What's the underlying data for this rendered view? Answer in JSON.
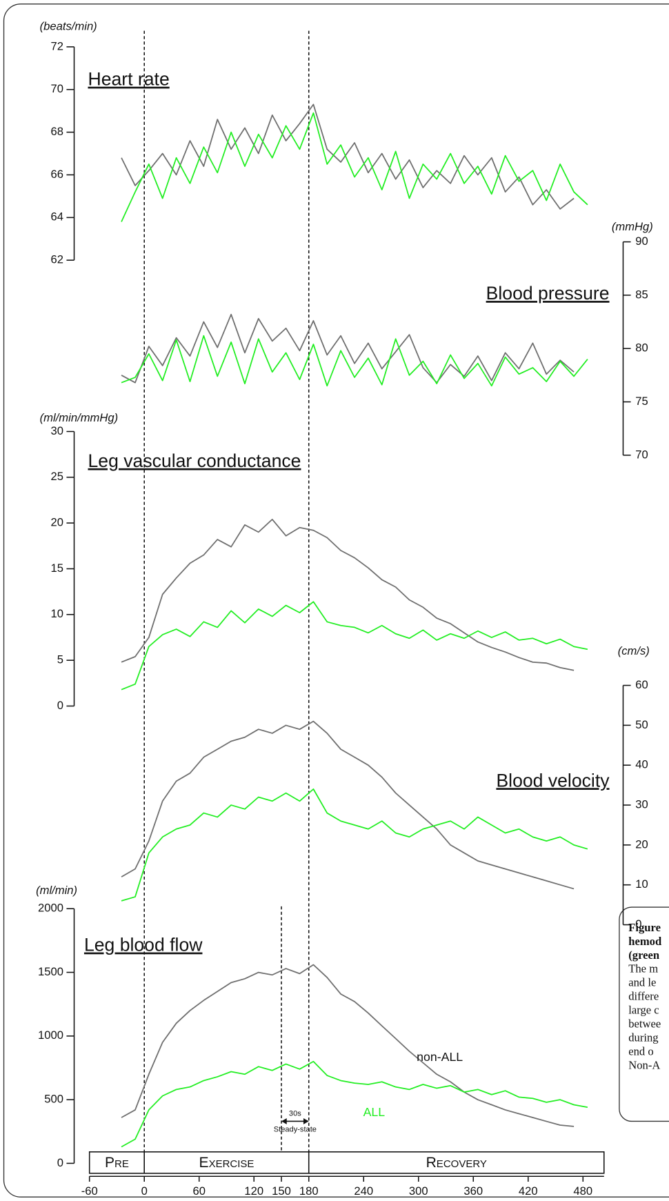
{
  "chart_data": [
    {
      "type": "line",
      "title": "Heart rate",
      "y_label": "(beats/min)",
      "y_axis": "left",
      "ylim": [
        62,
        72
      ],
      "yticks": [
        62,
        64,
        66,
        68,
        70,
        72
      ],
      "x": [
        -25,
        -10,
        5,
        20,
        35,
        50,
        65,
        80,
        95,
        110,
        125,
        140,
        155,
        170,
        185,
        200,
        215,
        230,
        245,
        260,
        275,
        290,
        305,
        320,
        335,
        350,
        365,
        380,
        395,
        410,
        425,
        440,
        455,
        470,
        485
      ],
      "series": [
        {
          "color": "#6e6e6e",
          "values": [
            66.8,
            65.5,
            66.2,
            67.0,
            66.0,
            67.6,
            66.4,
            68.6,
            67.2,
            68.2,
            67.0,
            68.8,
            67.6,
            68.4,
            69.3,
            67.2,
            66.6,
            67.5,
            66.1,
            67.0,
            65.8,
            66.7,
            65.4,
            66.2,
            65.6,
            66.9,
            66.0,
            66.8,
            65.2,
            65.9,
            64.6,
            65.3,
            64.4,
            64.9,
            null
          ]
        },
        {
          "color": "#22ee22",
          "values": [
            63.8,
            65.2,
            66.5,
            64.9,
            66.8,
            65.6,
            67.3,
            66.1,
            68.0,
            66.4,
            67.9,
            66.8,
            68.3,
            67.2,
            68.9,
            66.5,
            67.4,
            65.9,
            66.8,
            65.3,
            67.1,
            64.9,
            66.5,
            65.8,
            67.0,
            65.6,
            66.4,
            65.1,
            66.9,
            65.7,
            66.2,
            64.8,
            66.5,
            65.2,
            64.6
          ]
        }
      ]
    },
    {
      "type": "line",
      "title": "Blood pressure",
      "y_label": "(mmHg)",
      "y_axis": "right",
      "ylim": [
        70,
        90
      ],
      "yticks": [
        70,
        75,
        80,
        85,
        90
      ],
      "x": [
        -25,
        -10,
        5,
        20,
        35,
        50,
        65,
        80,
        95,
        110,
        125,
        140,
        155,
        170,
        185,
        200,
        215,
        230,
        245,
        260,
        275,
        290,
        305,
        320,
        335,
        350,
        365,
        380,
        395,
        410,
        425,
        440,
        455,
        470,
        485
      ],
      "series": [
        {
          "color": "#6e6e6e",
          "values": [
            77.5,
            76.8,
            80.2,
            78.4,
            81.0,
            79.3,
            82.5,
            80.1,
            83.2,
            79.6,
            82.8,
            80.7,
            81.9,
            79.8,
            82.6,
            79.4,
            81.2,
            78.6,
            80.5,
            78.1,
            79.7,
            81.3,
            78.2,
            76.8,
            78.5,
            77.4,
            79.3,
            77.0,
            79.6,
            78.1,
            80.5,
            77.6,
            78.9,
            77.8,
            null
          ]
        },
        {
          "color": "#22ee22",
          "values": [
            76.8,
            77.3,
            79.5,
            77.0,
            80.8,
            76.9,
            81.2,
            77.4,
            80.6,
            76.7,
            80.9,
            77.8,
            79.6,
            77.1,
            80.4,
            76.5,
            79.8,
            77.3,
            79.1,
            76.6,
            80.9,
            77.5,
            78.8,
            76.7,
            79.4,
            77.2,
            78.6,
            76.5,
            79.2,
            77.6,
            78.2,
            76.9,
            78.8,
            77.4,
            79.0
          ]
        }
      ]
    },
    {
      "type": "line",
      "title": "Leg vascular conductance",
      "y_label": "(ml/min/mmHg)",
      "y_axis": "left",
      "ylim": [
        0,
        30
      ],
      "yticks": [
        0,
        5,
        10,
        15,
        20,
        25,
        30
      ],
      "x": [
        -25,
        -10,
        5,
        20,
        35,
        50,
        65,
        80,
        95,
        110,
        125,
        140,
        155,
        170,
        185,
        200,
        215,
        230,
        245,
        260,
        275,
        290,
        305,
        320,
        335,
        350,
        365,
        380,
        395,
        410,
        425,
        440,
        455,
        470,
        485
      ],
      "series": [
        {
          "color": "#6e6e6e",
          "values": [
            4.8,
            5.4,
            7.5,
            12.2,
            14.0,
            15.6,
            16.5,
            18.2,
            17.4,
            19.8,
            19.0,
            20.4,
            18.6,
            19.5,
            19.2,
            18.4,
            17.0,
            16.2,
            15.1,
            13.8,
            13.0,
            11.6,
            10.8,
            9.6,
            9.0,
            8.0,
            7.0,
            6.4,
            5.9,
            5.3,
            4.8,
            4.7,
            4.2,
            3.9,
            null
          ]
        },
        {
          "color": "#22ee22",
          "values": [
            1.8,
            2.4,
            6.5,
            7.8,
            8.4,
            7.6,
            9.2,
            8.6,
            10.4,
            9.1,
            10.6,
            9.8,
            11.0,
            10.2,
            11.4,
            9.2,
            8.8,
            8.6,
            8.0,
            8.8,
            7.9,
            7.4,
            8.3,
            7.2,
            7.9,
            7.4,
            8.2,
            7.5,
            8.1,
            7.2,
            7.4,
            6.8,
            7.3,
            6.5,
            6.2
          ]
        }
      ]
    },
    {
      "type": "line",
      "title": "Blood velocity",
      "y_label": "(cm/s)",
      "y_axis": "right",
      "ylim": [
        0,
        60
      ],
      "yticks": [
        0,
        10,
        20,
        30,
        40,
        50,
        60
      ],
      "x": [
        -25,
        -10,
        5,
        20,
        35,
        50,
        65,
        80,
        95,
        110,
        125,
        140,
        155,
        170,
        185,
        200,
        215,
        230,
        245,
        260,
        275,
        290,
        305,
        320,
        335,
        350,
        365,
        380,
        395,
        410,
        425,
        440,
        455,
        470,
        485
      ],
      "series": [
        {
          "color": "#6e6e6e",
          "values": [
            12,
            14,
            21,
            31,
            36,
            38,
            42,
            44,
            46,
            47,
            49,
            48,
            50,
            49,
            51,
            48,
            44,
            42,
            40,
            37,
            33,
            30,
            27,
            24,
            20,
            18,
            16,
            15,
            14,
            13,
            12,
            11,
            10,
            9,
            null
          ]
        },
        {
          "color": "#22ee22",
          "values": [
            6,
            7,
            18,
            22,
            24,
            25,
            28,
            27,
            30,
            29,
            32,
            31,
            33,
            31,
            34,
            28,
            26,
            25,
            24,
            26,
            23,
            22,
            24,
            25,
            26,
            24,
            27,
            25,
            23,
            24,
            22,
            21,
            22,
            20,
            19
          ]
        }
      ]
    },
    {
      "type": "line",
      "title": "Leg blood flow",
      "y_label": "(ml/min)",
      "y_axis": "left",
      "ylim": [
        0,
        2000
      ],
      "yticks": [
        0,
        500,
        1000,
        1500,
        2000
      ],
      "xlim": [
        -60,
        503
      ],
      "xticks": [
        -60,
        0,
        60,
        120,
        150,
        180,
        240,
        300,
        360,
        420,
        480
      ],
      "vlines": [
        0,
        180
      ],
      "steady_state": {
        "range": [
          150,
          180
        ],
        "label": "30s",
        "sublabel": "Steady-state"
      },
      "phases": [
        {
          "label": "Pre",
          "start": -60,
          "end": 0
        },
        {
          "label": "Exercise",
          "start": 0,
          "end": 180
        },
        {
          "label": "Recovery",
          "start": 180,
          "end": 503
        }
      ],
      "x": [
        -25,
        -10,
        5,
        20,
        35,
        50,
        65,
        80,
        95,
        110,
        125,
        140,
        155,
        170,
        185,
        200,
        215,
        230,
        245,
        260,
        275,
        290,
        305,
        320,
        335,
        350,
        365,
        380,
        395,
        410,
        425,
        440,
        455,
        470,
        485
      ],
      "series": [
        {
          "name": "non-ALL",
          "color": "#6e6e6e",
          "values": [
            360,
            420,
            700,
            950,
            1100,
            1200,
            1280,
            1350,
            1420,
            1450,
            1500,
            1480,
            1530,
            1490,
            1560,
            1460,
            1330,
            1270,
            1180,
            1080,
            980,
            880,
            790,
            700,
            640,
            560,
            500,
            460,
            420,
            390,
            360,
            330,
            300,
            290,
            null
          ]
        },
        {
          "name": "ALL",
          "color": "#22ee22",
          "values": [
            130,
            190,
            420,
            530,
            580,
            600,
            650,
            680,
            720,
            700,
            760,
            730,
            780,
            740,
            800,
            690,
            650,
            630,
            620,
            640,
            600,
            580,
            620,
            590,
            610,
            560,
            580,
            540,
            570,
            520,
            510,
            480,
            500,
            460,
            440
          ]
        }
      ]
    }
  ],
  "caption": {
    "bold_lines": [
      "Figure",
      "hemod",
      "(green"
    ],
    "lines": [
      "The m",
      "and le",
      "differe",
      "large c",
      "betwee",
      "during",
      "end o",
      "Non-A"
    ]
  }
}
